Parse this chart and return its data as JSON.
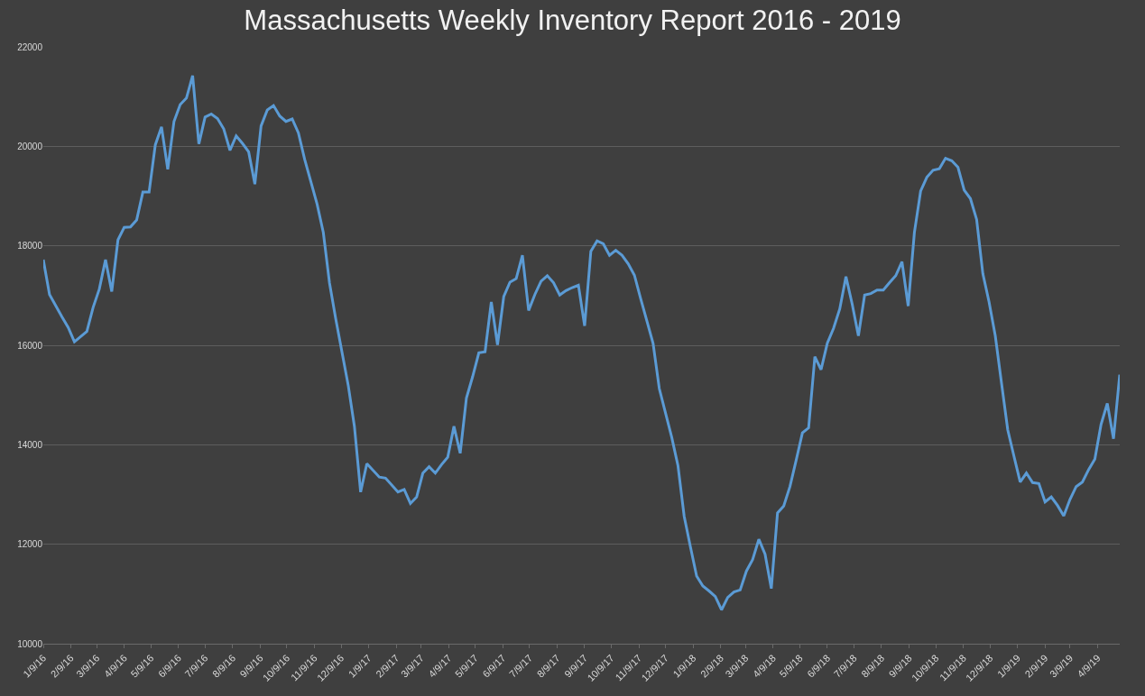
{
  "chart_data": {
    "type": "line",
    "title": "Massachusetts Weekly Inventory Report 2016 - 2019",
    "x": [
      "2016-01-09",
      "2016-01-16",
      "2016-01-30",
      "2016-02-06",
      "2016-02-13",
      "2016-02-27",
      "2016-03-05",
      "2016-03-12",
      "2016-03-19",
      "2016-03-26",
      "2016-04-02",
      "2016-04-09",
      "2016-04-16",
      "2016-04-23",
      "2016-04-30",
      "2016-05-07",
      "2016-05-14",
      "2016-05-21",
      "2016-05-28",
      "2016-06-04",
      "2016-06-11",
      "2016-06-18",
      "2016-06-25",
      "2016-07-02",
      "2016-07-09",
      "2016-07-16",
      "2016-07-23",
      "2016-07-30",
      "2016-08-06",
      "2016-08-13",
      "2016-08-20",
      "2016-08-27",
      "2016-09-03",
      "2016-09-10",
      "2016-09-17",
      "2016-09-24",
      "2016-10-01",
      "2016-10-08",
      "2016-10-15",
      "2016-10-22",
      "2016-10-29",
      "2016-11-12",
      "2016-11-19",
      "2016-11-26",
      "2016-12-03",
      "2016-12-17",
      "2016-12-24",
      "2016-12-31",
      "2017-01-07",
      "2017-01-21",
      "2017-01-28",
      "2017-02-11",
      "2017-02-18",
      "2017-02-25",
      "2017-03-04",
      "2017-03-11",
      "2017-03-18",
      "2017-03-25",
      "2017-04-01",
      "2017-04-08",
      "2017-04-15",
      "2017-04-22",
      "2017-04-29",
      "2017-05-06",
      "2017-05-13",
      "2017-05-20",
      "2017-05-27",
      "2017-06-03",
      "2017-06-10",
      "2017-06-17",
      "2017-06-24",
      "2017-07-01",
      "2017-07-08",
      "2017-07-15",
      "2017-07-22",
      "2017-07-29",
      "2017-08-05",
      "2017-08-12",
      "2017-08-19",
      "2017-08-26",
      "2017-09-02",
      "2017-09-09",
      "2017-09-16",
      "2017-09-23",
      "2017-09-30",
      "2017-10-07",
      "2017-10-14",
      "2017-10-21",
      "2017-10-28",
      "2017-11-04",
      "2017-11-11",
      "2017-11-18",
      "2017-11-25",
      "2017-12-02",
      "2017-12-09",
      "2017-12-16",
      "2017-12-23",
      "2017-12-30",
      "2018-01-06",
      "2018-01-13",
      "2018-01-20",
      "2018-01-27",
      "2018-02-03",
      "2018-02-10",
      "2018-02-17",
      "2018-02-24",
      "2018-03-03",
      "2018-03-10",
      "2018-03-17",
      "2018-03-24",
      "2018-03-31",
      "2018-04-07",
      "2018-04-14",
      "2018-04-21",
      "2018-04-28",
      "2018-05-05",
      "2018-05-12",
      "2018-05-19",
      "2018-05-26",
      "2018-06-02",
      "2018-06-09",
      "2018-06-16",
      "2018-06-23",
      "2018-06-30",
      "2018-07-07",
      "2018-07-14",
      "2018-07-21",
      "2018-07-28",
      "2018-08-04",
      "2018-08-11",
      "2018-08-18",
      "2018-08-25",
      "2018-09-01",
      "2018-09-08",
      "2018-09-15",
      "2018-09-22",
      "2018-09-29",
      "2018-10-06",
      "2018-10-13",
      "2018-10-20",
      "2018-10-27",
      "2018-11-03",
      "2018-11-10",
      "2018-11-17",
      "2018-11-24",
      "2018-12-01",
      "2018-12-08",
      "2018-12-15",
      "2018-12-22",
      "2018-12-29",
      "2019-01-05",
      "2019-01-12",
      "2019-01-19",
      "2019-01-26",
      "2019-02-02",
      "2019-02-09",
      "2019-02-16",
      "2019-02-23",
      "2019-03-02",
      "2019-03-09",
      "2019-03-16",
      "2019-03-23",
      "2019-03-30",
      "2019-04-06",
      "2019-04-13",
      "2019-04-20",
      "2019-04-27",
      "2019-05-04"
    ],
    "series": [
      {
        "color": "#5b9bd5",
        "values": [
          17720,
          17020,
          16570,
          16360,
          16070,
          16280,
          16760,
          17130,
          17720,
          17080,
          18120,
          18370,
          18380,
          18520,
          19080,
          19080,
          20030,
          20390,
          19540,
          20500,
          20840,
          20970,
          21420,
          20050,
          20590,
          20650,
          20560,
          20350,
          19920,
          20210,
          20060,
          19890,
          19240,
          20410,
          20730,
          20820,
          20610,
          20500,
          20550,
          20270,
          19740,
          18840,
          18270,
          17250,
          16530,
          15200,
          14370,
          13050,
          13620,
          13350,
          13330,
          13050,
          13100,
          12820,
          12950,
          13430,
          13560,
          13430,
          13600,
          13750,
          14370,
          13830,
          14940,
          15370,
          15850,
          15870,
          16870,
          16010,
          16980,
          17270,
          17340,
          17810,
          16700,
          17020,
          17290,
          17400,
          17260,
          17010,
          17100,
          17160,
          17210,
          16390,
          17890,
          18100,
          18040,
          17810,
          17910,
          17810,
          17640,
          17410,
          16940,
          16490,
          16040,
          15130,
          14640,
          14150,
          13580,
          12560,
          11950,
          11360,
          11160,
          11060,
          10950,
          10680,
          10930,
          11040,
          11080,
          11460,
          11690,
          12100,
          11800,
          11110,
          12630,
          12770,
          13160,
          13690,
          14240,
          14340,
          15770,
          15510,
          16040,
          16340,
          16730,
          17380,
          16830,
          16190,
          17010,
          17040,
          17110,
          17110,
          17260,
          17400,
          17680,
          16790,
          18270,
          19100,
          19380,
          19520,
          19550,
          19760,
          19710,
          19580,
          19120,
          18950,
          18530,
          17440,
          16870,
          16190,
          15240,
          14300,
          13770,
          13250,
          13430,
          13240,
          13220,
          12850,
          12950,
          12780,
          12570,
          12900,
          13160,
          13250,
          13500,
          13710,
          14410,
          14830,
          14120,
          15410
        ]
      }
    ],
    "xlim": [
      "2016-01-09",
      "2019-05-04"
    ],
    "xticks": [
      {
        "value": "2016-01-09",
        "label": "1/9/16"
      },
      {
        "value": "2016-02-09",
        "label": "2/9/16"
      },
      {
        "value": "2016-03-09",
        "label": "3/9/16"
      },
      {
        "value": "2016-04-09",
        "label": "4/9/16"
      },
      {
        "value": "2016-05-09",
        "label": "5/9/16"
      },
      {
        "value": "2016-06-09",
        "label": "6/9/16"
      },
      {
        "value": "2016-07-09",
        "label": "7/9/16"
      },
      {
        "value": "2016-08-09",
        "label": "8/9/16"
      },
      {
        "value": "2016-09-09",
        "label": "9/9/16"
      },
      {
        "value": "2016-10-09",
        "label": "10/9/16"
      },
      {
        "value": "2016-11-09",
        "label": "11/9/16"
      },
      {
        "value": "2016-12-09",
        "label": "12/9/16"
      },
      {
        "value": "2017-01-09",
        "label": "1/9/17"
      },
      {
        "value": "2017-02-09",
        "label": "2/9/17"
      },
      {
        "value": "2017-03-09",
        "label": "3/9/17"
      },
      {
        "value": "2017-04-09",
        "label": "4/9/17"
      },
      {
        "value": "2017-05-09",
        "label": "5/9/17"
      },
      {
        "value": "2017-06-09",
        "label": "6/9/17"
      },
      {
        "value": "2017-07-09",
        "label": "7/9/17"
      },
      {
        "value": "2017-08-09",
        "label": "8/9/17"
      },
      {
        "value": "2017-09-09",
        "label": "9/9/17"
      },
      {
        "value": "2017-10-09",
        "label": "10/9/17"
      },
      {
        "value": "2017-11-09",
        "label": "11/9/17"
      },
      {
        "value": "2017-12-09",
        "label": "12/9/17"
      },
      {
        "value": "2018-01-09",
        "label": "1/9/18"
      },
      {
        "value": "2018-02-09",
        "label": "2/9/18"
      },
      {
        "value": "2018-03-09",
        "label": "3/9/18"
      },
      {
        "value": "2018-04-09",
        "label": "4/9/18"
      },
      {
        "value": "2018-05-09",
        "label": "5/9/18"
      },
      {
        "value": "2018-06-09",
        "label": "6/9/18"
      },
      {
        "value": "2018-07-09",
        "label": "7/9/18"
      },
      {
        "value": "2018-08-09",
        "label": "8/9/18"
      },
      {
        "value": "2018-09-09",
        "label": "9/9/18"
      },
      {
        "value": "2018-10-09",
        "label": "10/9/18"
      },
      {
        "value": "2018-11-09",
        "label": "11/9/18"
      },
      {
        "value": "2018-12-09",
        "label": "12/9/18"
      },
      {
        "value": "2019-01-09",
        "label": "1/9/19"
      },
      {
        "value": "2019-02-09",
        "label": "2/9/19"
      },
      {
        "value": "2019-03-09",
        "label": "3/9/19"
      },
      {
        "value": "2019-04-09",
        "label": "4/9/19"
      }
    ],
    "ylim": [
      10000,
      22000
    ],
    "yticks": [
      10000,
      12000,
      14000,
      16000,
      18000,
      20000,
      22000
    ],
    "grid": "y",
    "marker": "none",
    "line_style": "solid"
  }
}
